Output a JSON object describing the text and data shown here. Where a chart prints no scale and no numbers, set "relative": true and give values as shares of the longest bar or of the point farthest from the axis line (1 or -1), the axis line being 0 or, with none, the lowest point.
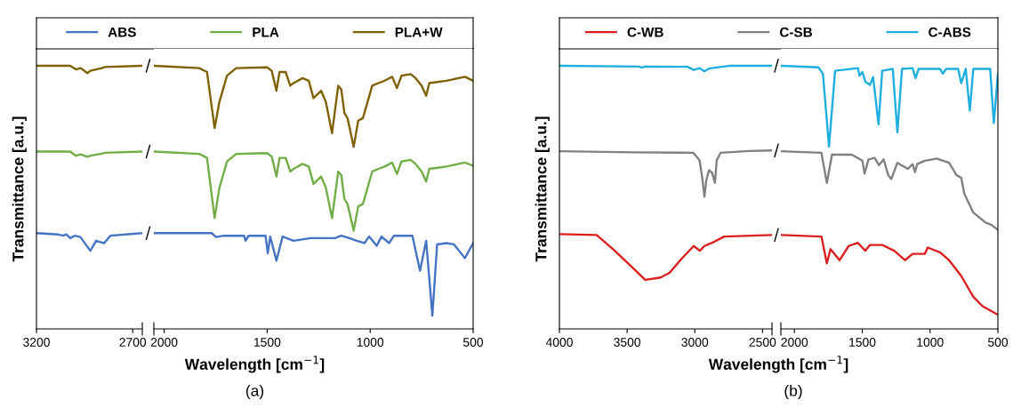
{
  "chart_data": [
    {
      "type": "line",
      "relative": true,
      "ylabel": "Transmittance [a.u.]",
      "legend": "top",
      "tick_labels": "x",
      "xlim": [
        3200,
        2650
      ],
      "xticks": [
        3200,
        2700
      ],
      "series": [
        {
          "name": "ABS",
          "color": "#4472c4",
          "x": [
            3200,
            3090,
            3062,
            3045,
            3024,
            3002,
            2972,
            2920,
            2890,
            2868,
            2848,
            2816,
            2650
          ],
          "values": [
            0.364,
            0.359,
            0.354,
            0.359,
            0.345,
            0.354,
            0.349,
            0.297,
            0.335,
            0.33,
            0.326,
            0.354,
            0.364
          ]
        },
        {
          "name": "PLA",
          "color": "#70ad47",
          "x": [
            3200,
            3025,
            2995,
            2970,
            2935,
            2920,
            2860,
            2845,
            2650
          ],
          "values": [
            0.674,
            0.674,
            0.658,
            0.663,
            0.654,
            0.658,
            0.666,
            0.669,
            0.674
          ]
        },
        {
          "name": "PLA+W",
          "color": "#7f6000",
          "x": [
            3200,
            3025,
            2995,
            2970,
            2935,
            2920,
            2860,
            2845,
            2650
          ],
          "values": [
            1.0,
            1.0,
            0.986,
            0.991,
            0.972,
            0.981,
            0.991,
            0.995,
            1.0
          ]
        }
      ]
    },
    {
      "type": "line",
      "relative": true,
      "title": "(a)",
      "xlabel": "Wavelength [cm$^{−1}$]",
      "tick_labels": "x",
      "xlim": [
        2050,
        500
      ],
      "xticks": [
        2000,
        1500,
        1000,
        500
      ],
      "series": [
        {
          "color": "#4472c4",
          "x": [
            2050,
            1770,
            1748,
            1710,
            1612,
            1605,
            1590,
            1508,
            1497,
            1485,
            1455,
            1425,
            1372,
            1290,
            1170,
            1140,
            1102,
            1065,
            1028,
            1005,
            968,
            945,
            908,
            885,
            840,
            795,
            758,
            728,
            698,
            675,
            630,
            593,
            540,
            500
          ],
          "values": [
            0.364,
            0.364,
            0.349,
            0.354,
            0.354,
            0.335,
            0.354,
            0.354,
            0.288,
            0.351,
            0.259,
            0.351,
            0.335,
            0.345,
            0.345,
            0.354,
            0.345,
            0.335,
            0.326,
            0.351,
            0.316,
            0.351,
            0.326,
            0.354,
            0.354,
            0.354,
            0.221,
            0.335,
            0.05,
            0.321,
            0.326,
            0.321,
            0.269,
            0.326
          ]
        },
        {
          "color": "#70ad47",
          "x": [
            2050,
            1830,
            1792,
            1755,
            1732,
            1695,
            1650,
            1500,
            1478,
            1455,
            1440,
            1410,
            1388,
            1372,
            1328,
            1298,
            1275,
            1238,
            1215,
            1185,
            1155,
            1140,
            1125,
            1110,
            1080,
            1058,
            1035,
            990,
            960,
            930,
            893,
            870,
            848,
            803,
            780,
            750,
            728,
            713,
            630,
            540,
            500
          ],
          "values": [
            0.674,
            0.665,
            0.65,
            0.421,
            0.536,
            0.636,
            0.665,
            0.668,
            0.655,
            0.579,
            0.65,
            0.65,
            0.598,
            0.608,
            0.627,
            0.617,
            0.551,
            0.579,
            0.536,
            0.421,
            0.598,
            0.584,
            0.494,
            0.475,
            0.373,
            0.465,
            0.475,
            0.598,
            0.608,
            0.617,
            0.632,
            0.589,
            0.636,
            0.642,
            0.627,
            0.598,
            0.56,
            0.608,
            0.617,
            0.632,
            0.62
          ]
        },
        {
          "color": "#7f6000",
          "x": [
            2050,
            1830,
            1792,
            1755,
            1732,
            1695,
            1650,
            1500,
            1478,
            1455,
            1440,
            1410,
            1388,
            1372,
            1328,
            1298,
            1275,
            1238,
            1215,
            1185,
            1155,
            1140,
            1125,
            1110,
            1080,
            1058,
            1035,
            990,
            960,
            930,
            893,
            870,
            848,
            803,
            780,
            750,
            728,
            713,
            630,
            540,
            500
          ],
          "values": [
            1.0,
            0.991,
            0.976,
            0.763,
            0.862,
            0.962,
            0.991,
            0.994,
            0.981,
            0.905,
            0.976,
            0.976,
            0.924,
            0.934,
            0.953,
            0.943,
            0.877,
            0.905,
            0.862,
            0.744,
            0.924,
            0.91,
            0.82,
            0.801,
            0.692,
            0.791,
            0.801,
            0.924,
            0.934,
            0.943,
            0.958,
            0.915,
            0.962,
            0.968,
            0.953,
            0.924,
            0.886,
            0.934,
            0.943,
            0.958,
            0.943
          ]
        }
      ]
    },
    {
      "type": "line",
      "relative": true,
      "ylabel": "Transmittance [a.u.]",
      "legend": "top",
      "tick_labels": "x",
      "xlim": [
        4000,
        2430
      ],
      "xticks": [
        4000,
        3500,
        3000,
        2500
      ],
      "series": [
        {
          "name": "C-WB",
          "color": "#dc1e1e",
          "x": [
            4000,
            3725,
            3591,
            3456,
            3366,
            3254,
            3187,
            3097,
            3008,
            2963,
            2929,
            2873,
            2783,
            2430
          ],
          "values": [
            0.36,
            0.357,
            0.297,
            0.231,
            0.186,
            0.195,
            0.213,
            0.267,
            0.315,
            0.297,
            0.315,
            0.327,
            0.351,
            0.357
          ]
        },
        {
          "name": "C-SB",
          "color": "#808080",
          "x": [
            4000,
            3450,
            3010,
            2965,
            2945,
            2929,
            2915,
            2895,
            2872,
            2851,
            2838,
            2810,
            2600,
            2430
          ],
          "values": [
            0.675,
            0.671,
            0.669,
            0.641,
            0.574,
            0.502,
            0.565,
            0.603,
            0.593,
            0.555,
            0.641,
            0.669,
            0.676,
            0.678
          ]
        },
        {
          "name": "C-ABS",
          "color": "#1eaee0",
          "x": [
            4000,
            3411,
            3390,
            3370,
            3053,
            3008,
            2963,
            2930,
            2896,
            2739,
            2430
          ],
          "values": [
            1.0,
            0.997,
            0.993,
            0.997,
            0.996,
            0.984,
            0.991,
            0.979,
            0.989,
            1.0,
            1.0
          ]
        }
      ]
    },
    {
      "type": "line",
      "relative": true,
      "title": "(b)",
      "xlabel": "Wavelength [cm$^{−1}$]",
      "tick_labels": "x",
      "xlim": [
        2100,
        500
      ],
      "xticks": [
        2000,
        1500,
        1000,
        500
      ],
      "series": [
        {
          "color": "#dc1e1e",
          "x": [
            2100,
            1801,
            1761,
            1734,
            1667,
            1600,
            1532,
            1477,
            1443,
            1353,
            1264,
            1185,
            1129,
            1039,
            1017,
            927,
            860,
            770,
            681,
            613,
            500
          ],
          "values": [
            0.357,
            0.351,
            0.249,
            0.303,
            0.261,
            0.315,
            0.327,
            0.297,
            0.319,
            0.319,
            0.297,
            0.261,
            0.285,
            0.285,
            0.309,
            0.291,
            0.261,
            0.201,
            0.122,
            0.086,
            0.054
          ]
        },
        {
          "color": "#808080",
          "x": [
            2100,
            1801,
            1761,
            1723,
            1577,
            1499,
            1483,
            1454,
            1409,
            1376,
            1342,
            1308,
            1286,
            1241,
            1163,
            1129,
            1111,
            1095,
            1039,
            950,
            860,
            804,
            770,
            748,
            681,
            591,
            546,
            500
          ],
          "values": [
            0.675,
            0.669,
            0.555,
            0.662,
            0.662,
            0.639,
            0.59,
            0.644,
            0.65,
            0.622,
            0.644,
            0.584,
            0.569,
            0.631,
            0.608,
            0.626,
            0.596,
            0.626,
            0.639,
            0.647,
            0.631,
            0.584,
            0.574,
            0.514,
            0.442,
            0.404,
            0.395,
            0.376
          ]
        },
        {
          "color": "#1eaee0",
          "x": [
            2100,
            1824,
            1790,
            1745,
            1700,
            1532,
            1521,
            1499,
            1477,
            1443,
            1420,
            1380,
            1353,
            1275,
            1241,
            1207,
            1129,
            1107,
            1084,
            927,
            905,
            882,
            793,
            770,
            737,
            707,
            681,
            557,
            530,
            500
          ],
          "values": [
            1.0,
            0.994,
            0.97,
            0.693,
            0.981,
            0.991,
            0.962,
            0.976,
            0.939,
            0.927,
            0.957,
            0.777,
            0.981,
            0.988,
            0.747,
            0.988,
            0.991,
            0.953,
            0.988,
            0.988,
            0.97,
            0.988,
            0.988,
            0.934,
            0.988,
            0.83,
            0.988,
            0.988,
            0.782,
            0.97
          ]
        }
      ]
    }
  ]
}
